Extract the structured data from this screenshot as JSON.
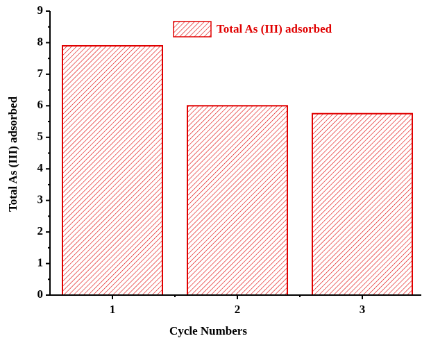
{
  "chart_data": {
    "type": "bar",
    "x_label": "Cycle Numbers",
    "y_label": "Total As (III) adsorbed",
    "categories": [
      "1",
      "2",
      "3"
    ],
    "series": [
      {
        "name": "Total As (III) adsorbed",
        "color": "#e00000",
        "values": [
          7.9,
          6.0,
          5.75
        ]
      }
    ],
    "ylim": [
      0,
      9
    ],
    "yticks": [
      0,
      1,
      2,
      3,
      4,
      5,
      6,
      7,
      8,
      9
    ],
    "legend": "top"
  }
}
